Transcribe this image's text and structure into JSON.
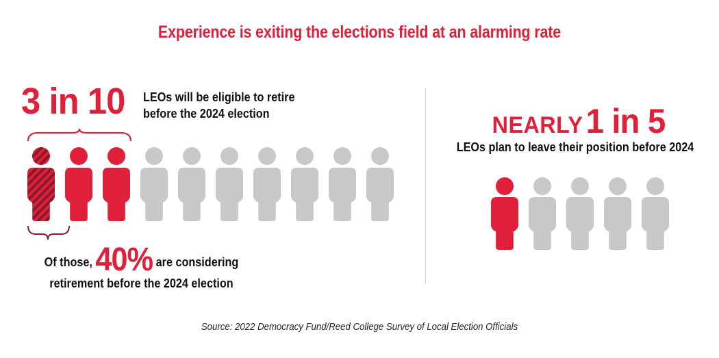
{
  "title": "Experience is exiting the elections field at an alarming rate",
  "left": {
    "stat": "3 in 10",
    "desc_line1": "LEOs will be eligible to retire",
    "desc_line2": "before the 2024 election",
    "people": [
      {
        "state": "hatched"
      },
      {
        "state": "highlight"
      },
      {
        "state": "highlight"
      },
      {
        "state": "neutral"
      },
      {
        "state": "neutral"
      },
      {
        "state": "neutral"
      },
      {
        "state": "neutral"
      },
      {
        "state": "neutral"
      },
      {
        "state": "neutral"
      },
      {
        "state": "neutral"
      }
    ],
    "note_prefix": "Of those, ",
    "note_pct": "40%",
    "note_suffix": " are considering",
    "note_line2": "retirement before the 2024 election"
  },
  "right": {
    "nearly": "NEARLY",
    "ratio": "1 in 5",
    "desc": "LEOs plan to leave their position before 2024",
    "people": [
      {
        "state": "highlight"
      },
      {
        "state": "neutral"
      },
      {
        "state": "neutral"
      },
      {
        "state": "neutral"
      },
      {
        "state": "neutral"
      }
    ]
  },
  "source": "Source: 2022 Democracy Fund/Reed College Survey of Local Election Officials",
  "colors": {
    "highlight": "#e0203a",
    "neutral": "#c8c8c8",
    "hatch_dark": "#8a1a2a",
    "brace": "#e0203a",
    "brace_small": "#8a1a2a"
  }
}
